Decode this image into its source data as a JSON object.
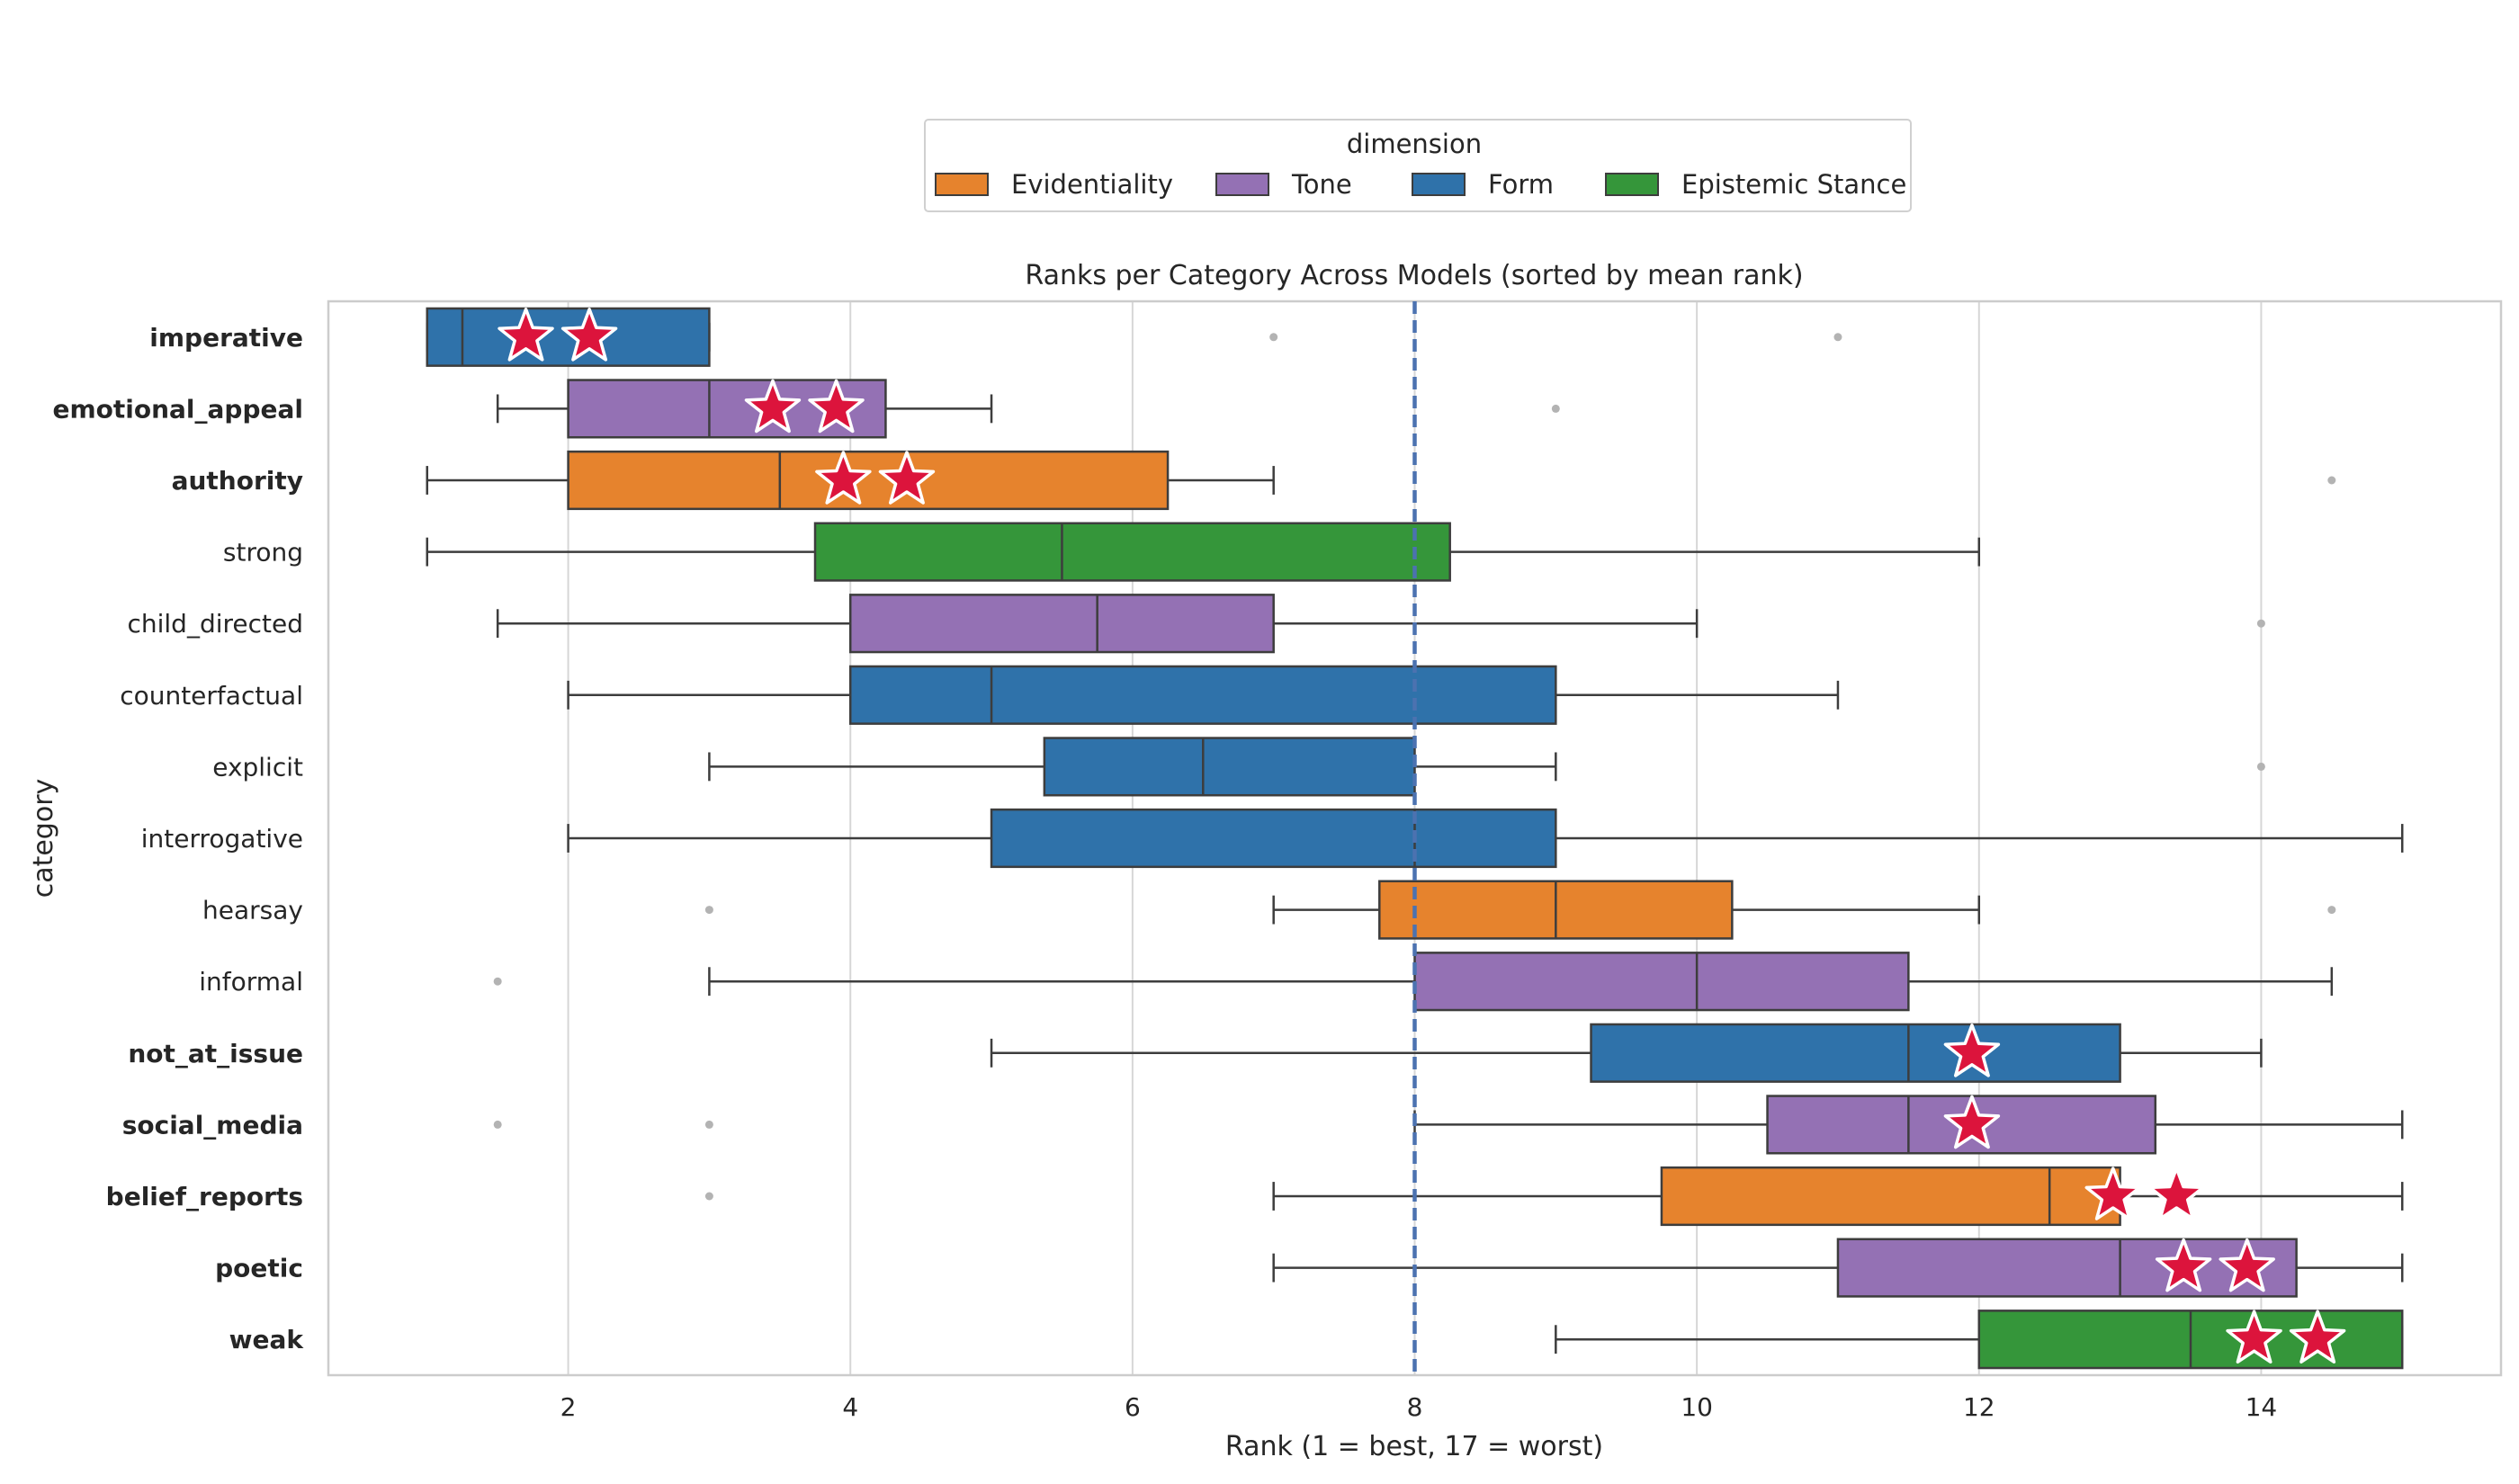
{
  "chart_data": {
    "type": "boxplot",
    "title": "Ranks per Category Across Models (sorted by mean rank)",
    "xlabel": "Rank (1 = best, 17 = worst)",
    "ylabel": "category",
    "xlim": [
      0.3,
      15.7
    ],
    "xticks": [
      2,
      4,
      6,
      8,
      10,
      12,
      14
    ],
    "reference_line_x": 8,
    "grid": "vertical",
    "orientation": "horizontal",
    "legend": {
      "title": "dimension",
      "position": "top-center",
      "entries": [
        {
          "label": "Evidentiality",
          "color": "#e6832d"
        },
        {
          "label": "Tone",
          "color": "#9471b4"
        },
        {
          "label": "Form",
          "color": "#2f72aa"
        },
        {
          "label": "Epistemic Stance",
          "color": "#35963a"
        }
      ]
    },
    "categories": [
      {
        "name": "imperative",
        "bold": true,
        "dimension": "Form",
        "whisker_low": 1,
        "q1": 1,
        "median": 1.25,
        "q3": 3,
        "whisker_high": 3,
        "outliers": [
          7,
          11
        ],
        "stars": [
          1.7,
          2.15
        ]
      },
      {
        "name": "emotional_appeal",
        "bold": true,
        "dimension": "Tone",
        "whisker_low": 1.5,
        "q1": 2,
        "median": 3,
        "q3": 4.25,
        "whisker_high": 5,
        "outliers": [
          9
        ],
        "stars": [
          3.45,
          3.9
        ]
      },
      {
        "name": "authority",
        "bold": true,
        "dimension": "Evidentiality",
        "whisker_low": 1,
        "q1": 2,
        "median": 3.5,
        "q3": 6.25,
        "whisker_high": 7,
        "outliers": [
          14.5
        ],
        "stars": [
          3.95,
          4.4
        ]
      },
      {
        "name": "strong",
        "bold": false,
        "dimension": "Epistemic Stance",
        "whisker_low": 1,
        "q1": 3.75,
        "median": 5.5,
        "q3": 8.25,
        "whisker_high": 12,
        "outliers": [],
        "stars": []
      },
      {
        "name": "child_directed",
        "bold": false,
        "dimension": "Tone",
        "whisker_low": 1.5,
        "q1": 4,
        "median": 5.75,
        "q3": 7,
        "whisker_high": 10,
        "outliers": [
          14
        ],
        "stars": []
      },
      {
        "name": "counterfactual",
        "bold": false,
        "dimension": "Form",
        "whisker_low": 2,
        "q1": 4,
        "median": 5,
        "q3": 9,
        "whisker_high": 11,
        "outliers": [],
        "stars": []
      },
      {
        "name": "explicit",
        "bold": false,
        "dimension": "Form",
        "whisker_low": 3,
        "q1": 5.375,
        "median": 6.5,
        "q3": 8,
        "whisker_high": 9,
        "outliers": [
          14
        ],
        "stars": []
      },
      {
        "name": "interrogative",
        "bold": false,
        "dimension": "Form",
        "whisker_low": 2,
        "q1": 5,
        "median": 8,
        "q3": 9,
        "whisker_high": 15,
        "outliers": [],
        "stars": []
      },
      {
        "name": "hearsay",
        "bold": false,
        "dimension": "Evidentiality",
        "whisker_low": 7,
        "q1": 7.75,
        "median": 9,
        "q3": 10.25,
        "whisker_high": 12,
        "outliers": [
          3,
          14.5
        ],
        "stars": []
      },
      {
        "name": "informal",
        "bold": false,
        "dimension": "Tone",
        "whisker_low": 3,
        "q1": 8,
        "median": 10,
        "q3": 11.5,
        "whisker_high": 14.5,
        "outliers": [
          1.5
        ],
        "stars": []
      },
      {
        "name": "not_at_issue",
        "bold": true,
        "dimension": "Form",
        "whisker_low": 5,
        "q1": 9.25,
        "median": 11.5,
        "q3": 13,
        "whisker_high": 14,
        "outliers": [],
        "stars": [
          11.95
        ]
      },
      {
        "name": "social_media",
        "bold": true,
        "dimension": "Tone",
        "whisker_low": 8,
        "q1": 10.5,
        "median": 11.5,
        "q3": 13.25,
        "whisker_high": 15,
        "outliers": [
          1.5,
          3
        ],
        "stars": [
          11.95
        ]
      },
      {
        "name": "belief_reports",
        "bold": true,
        "dimension": "Evidentiality",
        "whisker_low": 7,
        "q1": 9.75,
        "median": 12.5,
        "q3": 13,
        "whisker_high": 15,
        "outliers": [
          3
        ],
        "stars": [
          12.95,
          13.4
        ]
      },
      {
        "name": "poetic",
        "bold": true,
        "dimension": "Tone",
        "whisker_low": 7,
        "q1": 11,
        "median": 13,
        "q3": 14.25,
        "whisker_high": 15,
        "outliers": [],
        "stars": [
          13.45,
          13.9
        ]
      },
      {
        "name": "weak",
        "bold": true,
        "dimension": "Epistemic Stance",
        "whisker_low": 9,
        "q1": 12,
        "median": 13.5,
        "q3": 15,
        "whisker_high": 15,
        "outliers": [],
        "stars": [
          13.95,
          14.4
        ]
      }
    ]
  },
  "colors": {
    "box_edge": "#3d3d3d",
    "grid": "#d6d6d6",
    "frame": "#cccccc",
    "reference_line": "#4c72b0",
    "star_fill": "#dc143c",
    "star_edge": "#ffffff",
    "outlier": "#b3b3b3",
    "text": "#262626"
  }
}
